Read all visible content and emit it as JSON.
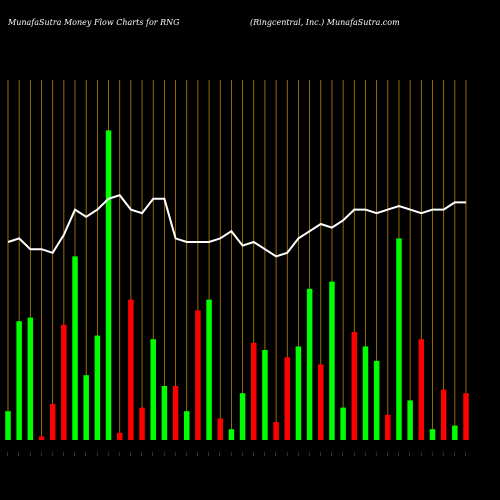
{
  "header": {
    "left_title": "MunafaSutra  Money Flow  Charts for RNG",
    "right_title": "(Ringcentral,  Inc.) MunafaSutra.com"
  },
  "colors": {
    "background": "#000000",
    "grid": "#b8860b",
    "up": "#00ff00",
    "down": "#ff0000",
    "line": "#ffffff",
    "text": "#ffffff"
  },
  "chart_data": {
    "type": "bar",
    "grid": true,
    "ylim": [
      0,
      100
    ],
    "x_labels_note": "small rotated date/value labels under each bar are not legible at this resolution",
    "categories": [
      "…",
      "…",
      "…",
      "…",
      "…",
      "…",
      "…",
      "…",
      "…",
      "…",
      "…",
      "…",
      "…",
      "…",
      "…",
      "…",
      "…",
      "…",
      "…",
      "…",
      "…",
      "…",
      "…",
      "…",
      "…",
      "…",
      "…",
      "…",
      "…",
      "…",
      "…",
      "…",
      "…",
      "…",
      "…",
      "…",
      "…",
      "…",
      "…",
      "…",
      "…",
      "…"
    ],
    "series": [
      {
        "kind": "bar",
        "values": [
          8,
          33,
          34,
          1,
          10,
          32,
          51,
          18,
          29,
          86,
          2,
          39,
          9,
          28,
          15,
          15,
          8,
          36,
          39,
          6,
          3,
          13,
          27,
          25,
          5,
          23,
          26,
          42,
          21,
          44,
          9,
          30,
          26,
          22,
          7,
          56,
          11,
          28,
          3,
          14,
          4,
          13
        ],
        "colors": [
          "green",
          "green",
          "green",
          "red",
          "red",
          "red",
          "green",
          "green",
          "green",
          "green",
          "red",
          "red",
          "red",
          "green",
          "green",
          "red",
          "green",
          "red",
          "green",
          "red",
          "green",
          "green",
          "red",
          "green",
          "red",
          "red",
          "green",
          "green",
          "red",
          "green",
          "green",
          "red",
          "green",
          "green",
          "red",
          "green",
          "green",
          "red",
          "green",
          "red",
          "green",
          "red"
        ]
      },
      {
        "kind": "line",
        "values": [
          55,
          56,
          53,
          53,
          52,
          57,
          64,
          62,
          64,
          67,
          68,
          64,
          63,
          67,
          67,
          56,
          55,
          55,
          55,
          56,
          58,
          54,
          55,
          53,
          51,
          52,
          56,
          58,
          60,
          59,
          61,
          64,
          64,
          63,
          64,
          65,
          64,
          63,
          64,
          64,
          66,
          66
        ]
      }
    ]
  }
}
